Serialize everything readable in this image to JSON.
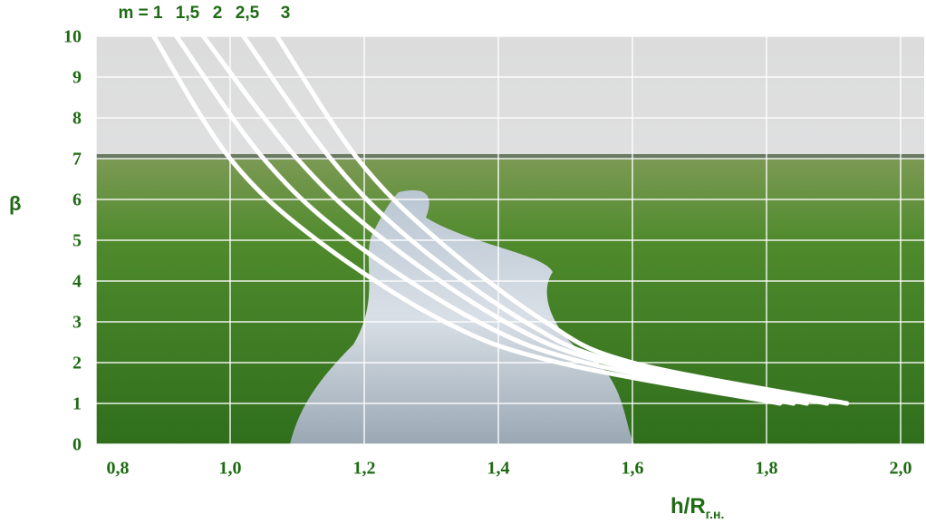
{
  "chart_data": {
    "type": "line",
    "ylabel": "β",
    "xlabel": "h/R",
    "xlabel_sub": "г.н.",
    "xlim": [
      0.8,
      2.0
    ],
    "ylim": [
      0,
      10
    ],
    "xticks": [
      {
        "value": 0.8,
        "label": "0,8"
      },
      {
        "value": 1.0,
        "label": "1,0"
      },
      {
        "value": 1.2,
        "label": "1,2"
      },
      {
        "value": 1.4,
        "label": "1,4"
      },
      {
        "value": 1.6,
        "label": "1,6"
      },
      {
        "value": 1.8,
        "label": "1,8"
      },
      {
        "value": 2.0,
        "label": "2,0"
      }
    ],
    "yticks": [
      0,
      1,
      2,
      3,
      4,
      5,
      6,
      7,
      8,
      9,
      10
    ],
    "grid": true,
    "series": [
      {
        "name": "m = 1",
        "color": "#ffffff",
        "x": [
          0.886,
          1.0,
          1.13,
          1.32,
          1.49,
          1.82
        ],
        "values": [
          10,
          7,
          5,
          3,
          2,
          1
        ]
      },
      {
        "name": "1,5",
        "color": "#ffffff",
        "x": [
          0.92,
          1.05,
          1.18,
          1.37,
          1.53,
          1.84
        ],
        "values": [
          10,
          7,
          5,
          3,
          2,
          1
        ]
      },
      {
        "name": "2",
        "color": "#ffffff",
        "x": [
          0.96,
          1.1,
          1.23,
          1.41,
          1.56,
          1.86
        ],
        "values": [
          10,
          7,
          5,
          3,
          2,
          1
        ]
      },
      {
        "name": "2,5",
        "color": "#ffffff",
        "x": [
          1.02,
          1.15,
          1.27,
          1.44,
          1.58,
          1.89
        ],
        "values": [
          10,
          7,
          5,
          3,
          2,
          1
        ]
      },
      {
        "name": "3",
        "color": "#ffffff",
        "x": [
          1.07,
          1.19,
          1.31,
          1.47,
          1.6,
          1.92
        ],
        "values": [
          10,
          7,
          5,
          3,
          2,
          1
        ]
      }
    ]
  }
}
